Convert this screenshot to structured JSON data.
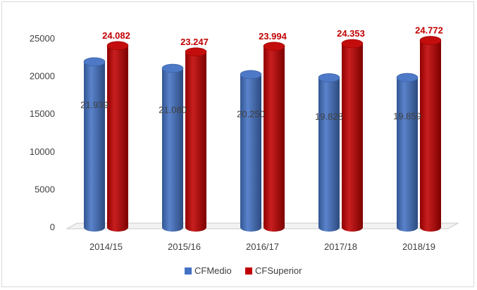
{
  "chart_data": {
    "type": "bar",
    "categories": [
      "2014/15",
      "2015/16",
      "2016/17",
      "2017/18",
      "2018/19"
    ],
    "series": [
      {
        "name": "CFMedio",
        "values": [
          21939,
          21080,
          20250,
          19828,
          19859
        ],
        "labels": [
          "21.939",
          "21.080",
          "20.250",
          "19.828",
          "19.859"
        ],
        "color": "#4472c4"
      },
      {
        "name": "CFSuperior",
        "values": [
          24082,
          23247,
          23994,
          24353,
          24772
        ],
        "labels": [
          "24.082",
          "23.247",
          "23.994",
          "24.353",
          "24.772"
        ],
        "color": "#c00000"
      }
    ],
    "yticks": [
      "0",
      "5000",
      "10000",
      "15000",
      "20000",
      "25000"
    ],
    "ylim": [
      0,
      25000
    ],
    "grid": false,
    "legend_position": "bottom",
    "title": "",
    "xlabel": "",
    "ylabel": ""
  }
}
